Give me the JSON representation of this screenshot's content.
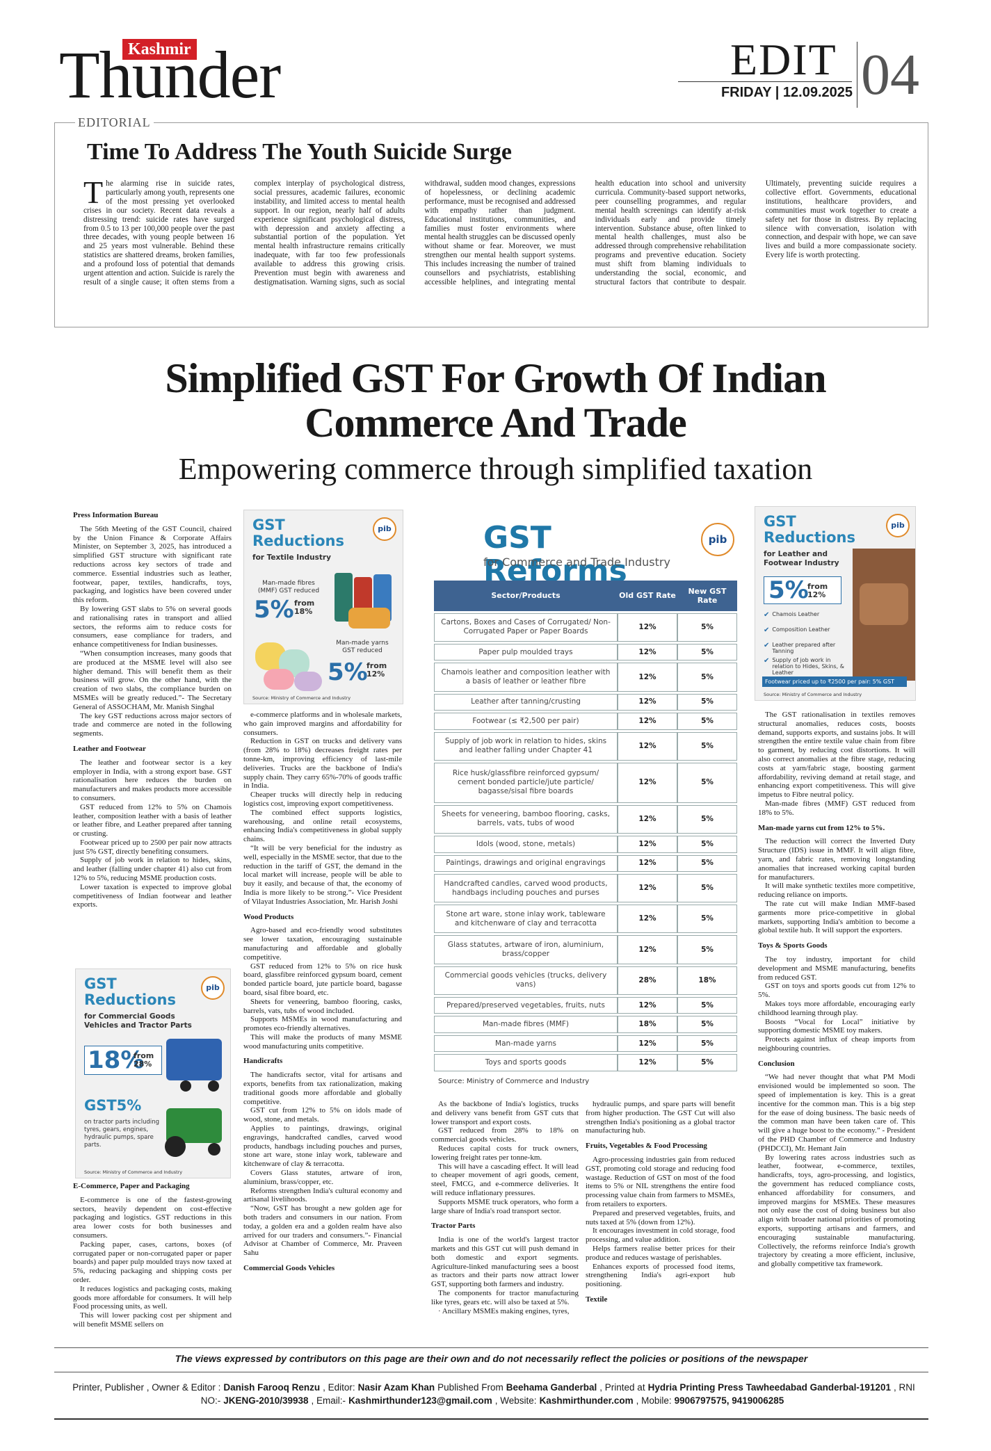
{
  "masthead": {
    "brand_top": "Kashmir",
    "brand": "Thunder",
    "section": "EDIT",
    "date": "FRIDAY | 12.09.2025",
    "page": "04"
  },
  "editorial": {
    "label": "EDITORIAL",
    "title": "Time To Address The Youth Suicide Surge",
    "body": "The alarming rise in suicide rates, particularly among youth, represents one of the most pressing yet overlooked crises in our society. Recent data reveals a distressing trend: suicide rates have surged from 0.5 to 13 per 100,000 people over the past three decades, with young people between 16 and 25 years most vulnerable. Behind these statistics are shattered dreams, broken families, and a profound loss of potential that demands urgent attention and action. Suicide is rarely the result of a single cause; it often stems from a complex interplay of psychological distress, social pressures, academic failures, economic instability, and limited access to mental health support. In our region, nearly half of adults experience significant psychological distress, with depression and anxiety affecting a substantial portion of the population. Yet mental health infrastructure remains critically inadequate, with far too few professionals available to address this growing crisis. Prevention must begin with awareness and destigmatisation. Warning signs, such as social withdrawal, sudden mood changes, expressions of hopelessness, or declining academic performance, must be recognised and addressed with empathy rather than judgment. Educational institutions, communities, and families must foster environments where mental health struggles can be discussed openly without shame or fear. Moreover, we must strengthen our mental health support systems. This includes increasing the number of trained counsellors and psychiatrists, establishing accessible helplines, and integrating mental health education into school and university curricula. Community-based support networks, peer counselling programmes, and regular mental health screenings can identify at-risk individuals early and provide timely intervention. Substance abuse, often linked to mental health challenges, must also be addressed through comprehensive rehabilitation programs and preventive education. Society must shift from blaming individuals to understanding the social, economic, and structural factors that contribute to despair. Ultimately, preventing suicide requires a collective effort. Governments, educational institutions, healthcare providers, and communities must work together to create a safety net for those in distress. By replacing silence with conversation, isolation with connection, and despair with hope, we can save lives and build a more compassionate society. Every life is worth protecting."
  },
  "article": {
    "title": "Simplified GST For Growth Of Indian Commerce And Trade",
    "subtitle": "Empowering commerce through simplified taxation",
    "columns": [
      [
        {
          "h": "Press Information Bureau"
        },
        {
          "p": "The 56th Meeting of the GST Council, chaired by the Union Finance & Corporate Affairs Minister, on September 3, 2025, has introduced a simplified GST structure with significant rate reductions across key sectors of trade and commerce. Essential industries such as leather, footwear, paper, textiles, handicrafts, toys, packaging, and logistics have been covered under this reform."
        },
        {
          "p": "By lowering GST slabs to 5% on several goods and rationalising rates in transport and allied sectors, the reforms aim to reduce costs for consumers, ease compliance for traders, and enhance competitiveness for Indian businesses."
        },
        {
          "p": "“When consumption increases, many goods that are produced at the MSME level will also see higher demand. This will benefit them as their business will grow. On the other hand, with the creation of two slabs, the compliance burden on MSMEs will be greatly reduced.”- The Secretary General of ASSOCHAM, Mr. Manish Singhal"
        },
        {
          "p": "The key GST reductions across major sectors of trade and commerce are noted in the following segments."
        },
        {
          "h": "Leather and Footwear"
        },
        {
          "p": "The leather and footwear sector is a key employer in India, with a strong export base. GST rationalisation here reduces the burden on manufacturers and makes products more accessible to consumers."
        },
        {
          "p": "GST reduced from 12% to 5% on Chamois leather, composition leather with a basis of leather or leather fibre, and Leather prepared after tanning or crusting."
        },
        {
          "p": "Footwear priced up to 2500 per pair now attracts just 5% GST, directly benefiting consumers."
        },
        {
          "p": "Supply of job work in relation to hides, skins, and leather (falling under chapter 41) also cut from 12% to 5%, reducing MSME production costs."
        },
        {
          "p": "Lower taxation is expected to improve global competitiveness of Indian footwear and leather exports."
        }
      ],
      [
        {
          "h": "E-Commerce, Paper and Packaging"
        },
        {
          "p": "E-commerce is one of the fastest-growing sectors, heavily dependent on cost-effective packaging and logistics. GST reductions in this area lower costs for both businesses and consumers."
        },
        {
          "p": "Packing paper, cases, cartons, boxes (of corrugated paper or non-corrugated paper or paper boards) and paper pulp moulded trays now taxed at 5%, reducing packaging and shipping costs per order."
        },
        {
          "p": "It reduces logistics and packaging costs, making goods more affordable for consumers. It will help Food processing units, as well."
        },
        {
          "p": "This will lower packing cost per shipment and will benefit MSME sellers on"
        }
      ],
      [
        {
          "p": "e-commerce platforms and in wholesale markets, who gain improved margins and affordability for consumers."
        },
        {
          "p": "Reduction in GST on trucks and delivery vans (from 28% to 18%) decreases freight rates per tonne-km, improving efficiency of last-mile deliveries. Trucks are the backbone of India's supply chain. They carry 65%-70% of goods traffic in India."
        },
        {
          "p": "Cheaper trucks will directly help in reducing logistics cost, improving export competitiveness."
        },
        {
          "p": "The combined effect supports logistics, warehousing, and online retail ecosystems, enhancing India's competitiveness in global supply chains."
        },
        {
          "p": "“It will be very beneficial for the industry as well, especially in the MSME sector, that due to the reduction in the tariff of GST, the demand in the local market will increase, people will be able to buy it easily, and because of that, the economy of India is more likely to be strong.”- Vice President of Vilayat Industries Association, Mr. Harish Joshi"
        },
        {
          "h": "Wood Products"
        },
        {
          "p": "Agro-based and eco-friendly wood substitutes see lower taxation, encouraging sustainable manufacturing and affordable and globally competitive."
        },
        {
          "p": "GST reduced from 12% to 5% on rice husk board, glassfibre reinforced gypsum board, cement bonded particle board, jute particle board, bagasse board, sisal fibre board, etc."
        },
        {
          "p": "Sheets for veneering, bamboo flooring, casks, barrels, vats, tubs of wood included."
        },
        {
          "p": "Supports MSMEs in wood manufacturing and promotes eco-friendly alternatives."
        },
        {
          "p": "This will make the products of many MSME wood manufacturing units competitive."
        },
        {
          "h": "Handicrafts"
        },
        {
          "p": "The handicrafts sector, vital for artisans and exports, benefits from tax rationalization, making traditional goods more affordable and globally competitive."
        },
        {
          "p": "GST cut from 12% to 5% on idols made of wood, stone, and metals."
        },
        {
          "p": "Applies to paintings, drawings, original engravings, handcrafted candles, carved wood products, handbags including pouches and purses, stone art ware, stone inlay work, tableware and kitchenware of clay & terracotta."
        },
        {
          "p": "Covers Glass statutes, artware of iron, aluminium, brass/copper, etc."
        },
        {
          "p": "Reforms strengthen India's cultural economy and artisanal livelihoods."
        },
        {
          "p": "“Now, GST has brought a new golden age for both traders and consumers in our nation. From today, a golden era and a golden realm have also arrived for our traders and consumers.”- Financial Advisor at Chamber of Commerce, Mr. Praveen Sahu"
        },
        {
          "h": "Commercial Goods Vehicles"
        }
      ],
      [
        {
          "p": "As the backbone of India's logistics, trucks and delivery vans benefit from GST cuts that lower transport and export costs."
        },
        {
          "p": "GST reduced from 28% to 18% on commercial goods vehicles."
        },
        {
          "p": "Reduces capital costs for truck owners, lowering freight rates per tonne-km."
        },
        {
          "p": "This will have a cascading effect. It will lead to cheaper movement of agri goods, cement, steel, FMCG, and e-commerce deliveries. It will reduce inflationary pressures."
        },
        {
          "p": "Supports MSME truck operators, who form a large share of India's road transport sector."
        },
        {
          "h": "Tractor Parts"
        },
        {
          "p": "India is one of the world's largest tractor markets and this GST cut will push demand in both domestic and export segments. Agriculture-linked manufacturing sees a boost as tractors and their parts now attract lower GST, supporting both farmers and industry."
        },
        {
          "p": "The components for tractor manufacturing like tyres, gears etc. will also be taxed at 5%."
        },
        {
          "p": "· Ancillary MSMEs making engines, tyres,"
        }
      ],
      [
        {
          "p": "hydraulic pumps, and spare parts will benefit from higher production. The GST Cut will also strengthen India's positioning as a global tractor manufacturing hub."
        },
        {
          "h": "Fruits, Vegetables & Food Processing"
        },
        {
          "p": "Agro-processing industries gain from reduced GST, promoting cold storage and reducing food wastage. Reduction of GST on most of the food items to 5% or NIL strengthens the entire food processing value chain from farmers to MSMEs, from retailers to exporters."
        },
        {
          "p": "Prepared and preserved vegetables, fruits, and nuts taxed at 5% (down from 12%)."
        },
        {
          "p": "It encourages investment in cold storage, food processing, and value addition."
        },
        {
          "p": "Helps farmers realise better prices for their produce and reduces wastage of perishables."
        },
        {
          "p": "Enhances exports of processed food items, strengthening India's agri-export hub positioning."
        },
        {
          "h": "Textile"
        }
      ],
      [
        {
          "p": "The GST rationalisation in textiles removes structural anomalies, reduces costs, boosts demand, supports exports, and sustains jobs. It will strengthen the entire textile value chain from fibre to garment, by reducing cost distortions. It will also correct anomalies at the fibre stage, reducing costs at yarn/fabric stage, boosting garment affordability, reviving demand at retail stage, and enhancing export competitiveness. This will give impetus to Fibre neutral policy."
        },
        {
          "p": "Man-made fibres (MMF) GST reduced from 18% to 5%."
        },
        {
          "h": "Man-made yarns cut from 12% to 5%."
        },
        {
          "p": "The reduction will correct the Inverted Duty Structure (IDS) issue in MMF. It will align fibre, yarn, and fabric rates, removing longstanding anomalies that increased working capital burden for manufacturers."
        },
        {
          "p": "It will make synthetic textiles more competitive, reducing reliance on imports."
        },
        {
          "p": "The rate cut will make Indian MMF-based garments more price-competitive in global markets, supporting India's ambition to become a global textile hub. It will support the exporters."
        },
        {
          "h": "Toys & Sports Goods"
        },
        {
          "p": "The toy industry, important for child development and MSME manufacturing, benefits from reduced GST."
        },
        {
          "p": "GST on toys and sports goods cut from 12% to 5%."
        },
        {
          "p": "Makes toys more affordable, encouraging early childhood learning through play."
        },
        {
          "p": "Boosts “Vocal for Local” initiative by supporting domestic MSME toy makers."
        },
        {
          "p": "Protects against influx of cheap imports from neighbouring countries."
        },
        {
          "h": "Conclusion"
        },
        {
          "p": "“We had never thought that what PM Modi envisioned would be implemented so soon. The speed of implementation is key. This is a great incentive for the common man. This is a big step for the ease of doing business. The basic needs of the common man have been taken care of. This will give a huge boost to the economy.” - President of the PHD Chamber of Commerce and Industry (PHDCCI), Mr. Hemant Jain"
        },
        {
          "p": "By lowering rates across industries such as leather, footwear, e-commerce, textiles, handicrafts, toys, agro-processing, and logistics, the government has reduced compliance costs, enhanced affordability for consumers, and improved margins for MSMEs. These measures not only ease the cost of doing business but also align with broader national priorities of promoting exports, supporting artisans and farmers, and encouraging sustainable manufacturing. Collectively, the reforms reinforce India's growth trajectory by creating a more efficient, inclusive, and globally competitive tax framework."
        }
      ]
    ]
  },
  "graphics": {
    "textile": {
      "title": "GST Reductions",
      "subtitle": "for Textile Industry",
      "logo": "pib",
      "item1": "Man-made fibres (MMF) GST reduced",
      "rate1": "5%",
      "from1": "from 18%",
      "item2": "Man-made yarns GST reduced",
      "rate2": "5%",
      "from2": "from 12%",
      "source": "Source: Ministry of Commerce and Industry"
    },
    "commercial": {
      "title": "GST Reductions",
      "subtitle": "for Commercial Goods Vehicles and Tractor Parts",
      "logo": "pib",
      "rate1": "18%",
      "from1": "from 28%",
      "rate2": "GST5%",
      "note2": "on tractor parts including tyres, gears, engines, hydraulic pumps, spare parts.",
      "source": "Source: Ministry of Commerce and Industry"
    },
    "leather": {
      "title": "GST Reductions",
      "subtitle": "for Leather and Footwear Industry",
      "logo": "pib",
      "rate": "5%",
      "from": "from 12%",
      "items": [
        "Chamois Leather",
        "Composition Leather",
        "Leather prepared after Tanning",
        "Supply of job work in relation to Hides, Skins, & Leather"
      ],
      "banner": "Footwear priced up to ₹2500 per pair: 5% GST",
      "source": "Source: Ministry of Commerce and Industry"
    },
    "reforms": {
      "title": "GST Reforms",
      "subtitle": "for Commerce and Trade Industry",
      "logo": "pib",
      "columns": [
        "Sector/Products",
        "Old GST Rate",
        "New GST Rate"
      ],
      "rows": [
        [
          "Cartons, Boxes and Cases of Corrugated/ Non-Corrugated Paper or Paper Boards",
          "12%",
          "5%"
        ],
        [
          "Paper pulp moulded trays",
          "12%",
          "5%"
        ],
        [
          "Chamois leather and composition leather with a basis of leather or leather fibre",
          "12%",
          "5%"
        ],
        [
          "Leather after tanning/crusting",
          "12%",
          "5%"
        ],
        [
          "Footwear (≤ ₹2,500 per pair)",
          "12%",
          "5%"
        ],
        [
          "Supply of job work in relation to hides, skins and leather falling under Chapter 41",
          "12%",
          "5%"
        ],
        [
          "Rice husk/glassfibre reinforced gypsum/ cement bonded particle/jute particle/ bagasse/sisal fibre boards",
          "12%",
          "5%"
        ],
        [
          "Sheets for veneering, bamboo flooring, casks, barrels, vats, tubs of wood",
          "12%",
          "5%"
        ],
        [
          "Idols (wood, stone, metals)",
          "12%",
          "5%"
        ],
        [
          "Paintings, drawings and original engravings",
          "12%",
          "5%"
        ],
        [
          "Handcrafted candles, carved wood products, handbags including pouches and purses",
          "12%",
          "5%"
        ],
        [
          "Stone art ware, stone inlay work, tableware and kitchenware of clay and terracotta",
          "12%",
          "5%"
        ],
        [
          "Glass statutes, artware of iron, aluminium, brass/copper",
          "12%",
          "5%"
        ],
        [
          "Commercial goods vehicles (trucks, delivery vans)",
          "28%",
          "18%"
        ],
        [
          "Prepared/preserved vegetables, fruits, nuts",
          "12%",
          "5%"
        ],
        [
          "Man-made fibres (MMF)",
          "18%",
          "5%"
        ],
        [
          "Man-made yarns",
          "12%",
          "5%"
        ],
        [
          "Toys and sports goods",
          "12%",
          "5%"
        ]
      ],
      "source": "Source: Ministry of Commerce and Industry"
    }
  },
  "footer": {
    "disclaimer": "The views expressed by contributors on this page are their own and do not necessarily reflect the policies or positions of the newspaper",
    "imprint": [
      {
        "label": "Printer, Publisher , Owner & Editor :",
        "value": "Danish Farooq Renzu"
      },
      {
        "label": ", Editor:",
        "value": "Nasir Azam Khan"
      },
      {
        "label": "Published From",
        "value": "Beehama Ganderbal"
      },
      {
        "label": ", Printed at",
        "value": "Hydria Printing Press Tawheedabad Ganderbal-191201"
      },
      {
        "label": ", RNI NO:-",
        "value": "JKENG-2010/39938"
      },
      {
        "label": ", Email:-",
        "value": "Kashmirthunder123@gmail.com"
      },
      {
        "label": ", Website:",
        "value": "Kashmirthunder.com"
      },
      {
        "label": ", Mobile:",
        "value": "9906797575, 9419006285"
      }
    ]
  }
}
